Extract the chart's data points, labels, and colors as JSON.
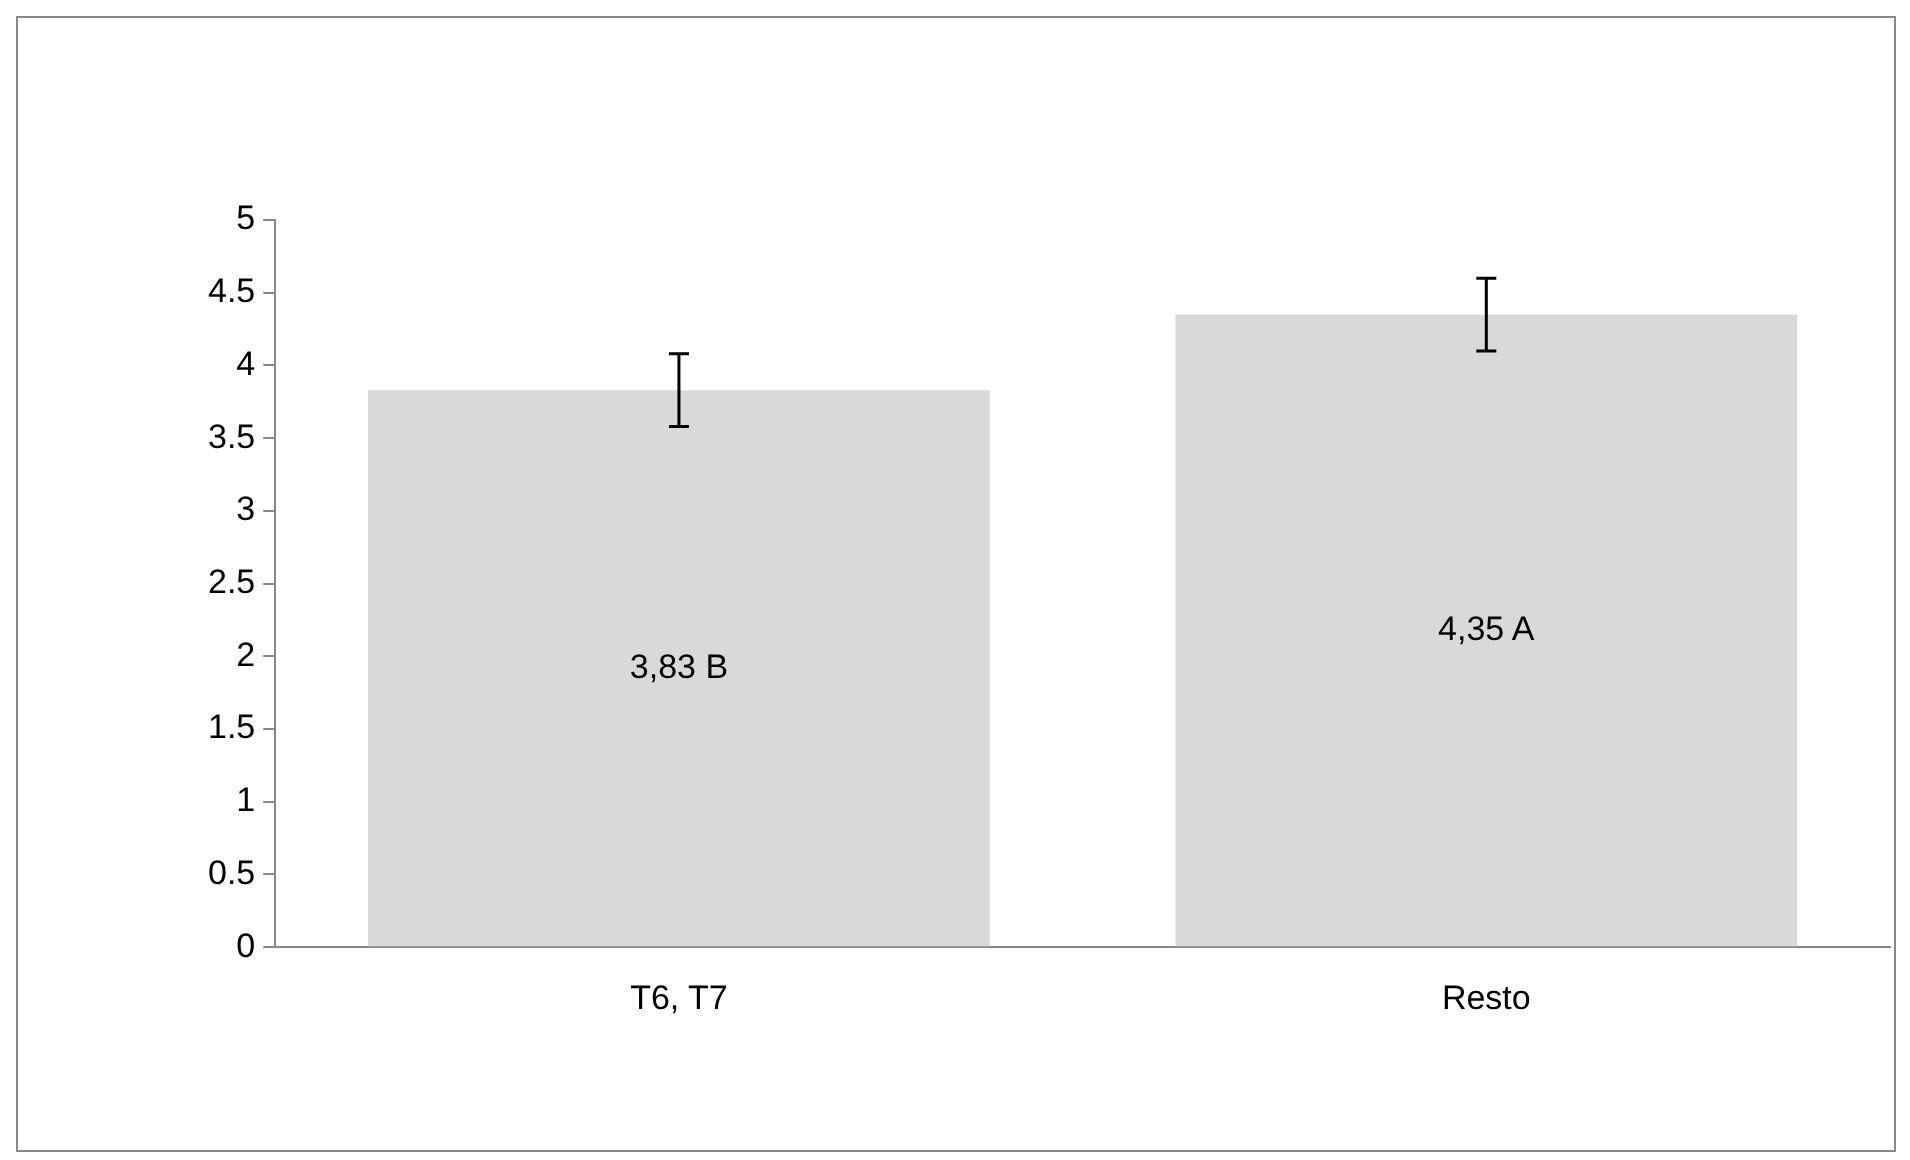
{
  "chart_data": {
    "type": "bar",
    "categories": [
      "T6, T7",
      "Resto"
    ],
    "values": [
      3.83,
      4.35
    ],
    "color": "#d9d9d9",
    "errors": [
      0.25,
      0.25
    ],
    "value_labels": [
      "3,83 B",
      "4,35 A"
    ],
    "ylim": [
      0,
      5
    ],
    "yticks": [
      0,
      0.5,
      1,
      1.5,
      2,
      2.5,
      3,
      3.5,
      4,
      4.5,
      5
    ],
    "grid": false,
    "legend": false
  }
}
